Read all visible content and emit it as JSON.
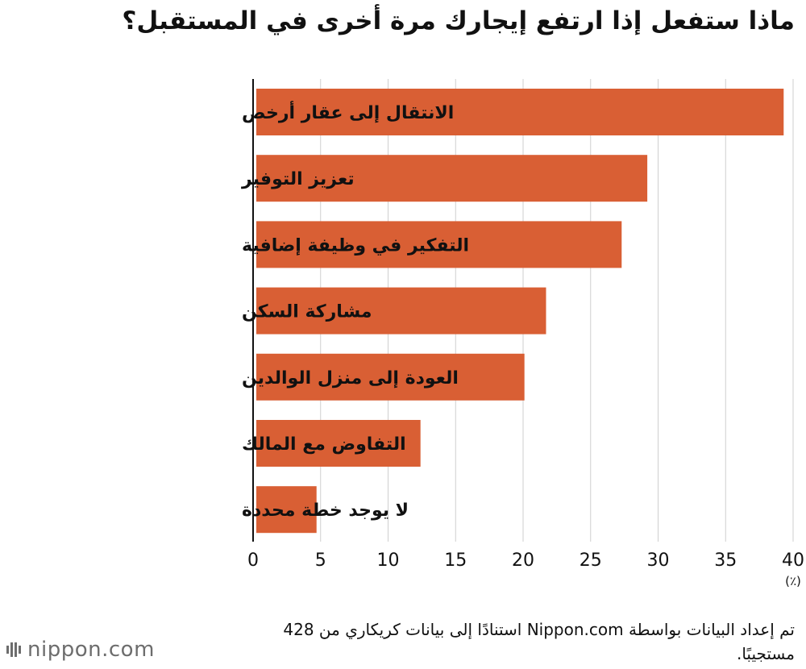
{
  "title": "ماذا ستفعل إذا ارتفع إيجارك مرة أخرى في المستقبل؟",
  "chart_data": {
    "type": "bar",
    "orientation": "horizontal",
    "title": "ماذا ستفعل إذا ارتفع إيجارك مرة أخرى في المستقبل؟",
    "categories": [
      "الانتقال إلى عقار أرخص",
      "تعزيز التوفير",
      "التفكير في وظيفة إضافية",
      "مشاركة السكن",
      "العودة إلى منزل الوالدين",
      "التفاوض مع المالك",
      "لا يوجد خطة محددة"
    ],
    "values": [
      39.3,
      29.2,
      27.3,
      21.7,
      20.1,
      12.4,
      4.7
    ],
    "xlim": [
      0,
      40
    ],
    "xticks": [
      0,
      5,
      10,
      15,
      20,
      25,
      30,
      35,
      40
    ],
    "xticks_labels": [
      "0",
      "5",
      "10",
      "15",
      "20",
      "25",
      "30",
      "35",
      "40"
    ],
    "unit_label": "(٪)",
    "bar_color": "#d95f34",
    "grid": "vertical"
  },
  "source": "تم إعداد البيانات بواسطة Nippon.com استنادًا إلى بيانات كريكاري من 428 مستجيبًا.",
  "logo": {
    "text": "nippon.com",
    "icon": "nippon-logo-icon",
    "text_color": "#6d6d6d"
  }
}
